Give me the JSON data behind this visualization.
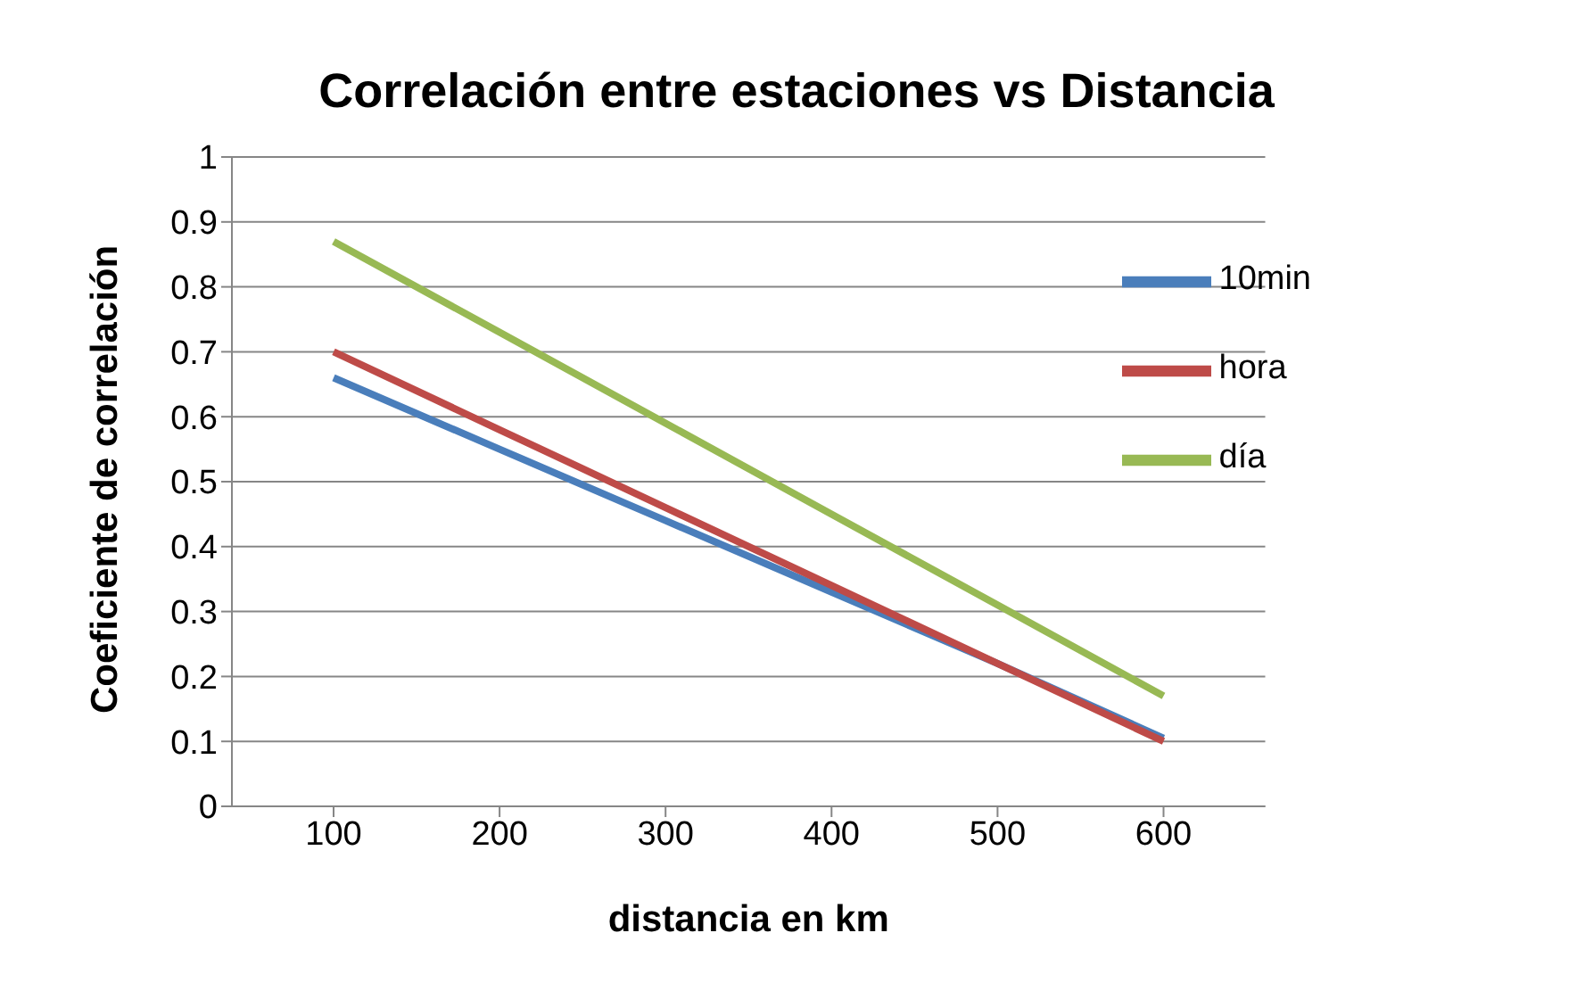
{
  "chart_data": {
    "type": "line",
    "title": "Correlación entre estaciones vs Distancia",
    "xlabel": "distancia en km",
    "ylabel": "Coeficiente de correlación",
    "categories": [
      "100",
      "200",
      "300",
      "400",
      "500",
      "600"
    ],
    "series": [
      {
        "name": "10min",
        "color": "#4a7ebb",
        "values": [
          0.66,
          0.55,
          0.44,
          0.33,
          0.22,
          0.105
        ]
      },
      {
        "name": "hora",
        "color": "#be4b48",
        "values": [
          0.7,
          0.58,
          0.46,
          0.34,
          0.22,
          0.1
        ]
      },
      {
        "name": "día",
        "color": "#98b954",
        "values": [
          0.87,
          0.73,
          0.59,
          0.45,
          0.31,
          0.17
        ]
      }
    ],
    "ylim": [
      0,
      1
    ],
    "yticks": [
      0,
      0.1,
      0.2,
      0.3,
      0.4,
      0.5,
      0.6,
      0.7,
      0.8,
      0.9,
      1
    ],
    "grid": "y",
    "legend": "top right",
    "marker": "none",
    "line_style": "solid"
  }
}
